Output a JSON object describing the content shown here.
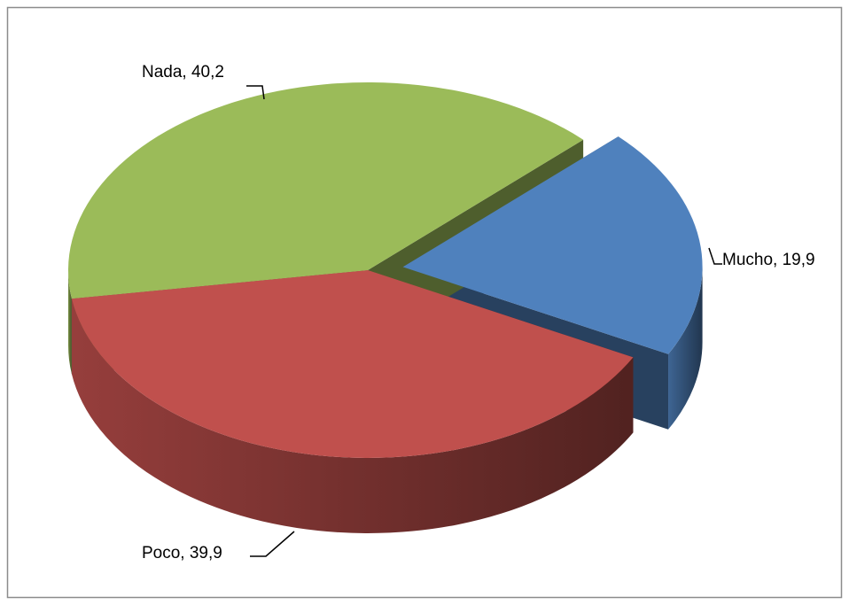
{
  "chart_data": {
    "type": "pie3d",
    "categories": [
      "Mucho",
      "Poco",
      "Nada"
    ],
    "values": [
      19.9,
      39.9,
      40.2
    ],
    "value_labels": [
      "Mucho, 19,9",
      "Poco, 39,9",
      "Nada, 40,2"
    ],
    "colors": [
      "#4f81bd",
      "#c0504d",
      "#9bbb59"
    ],
    "explode": [
      true,
      false,
      false
    ]
  }
}
